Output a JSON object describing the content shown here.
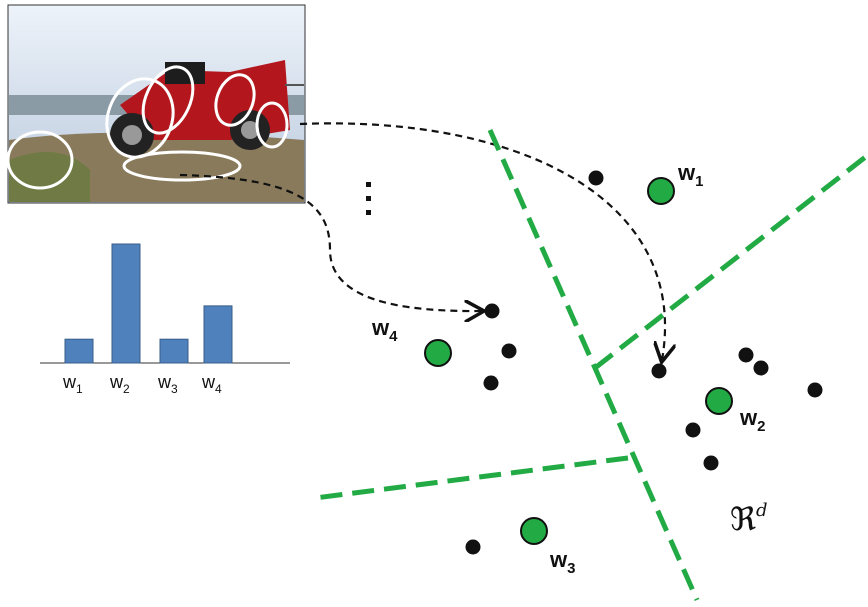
{
  "histogram": {
    "categories": [
      {
        "letter": "w",
        "subscript": "1"
      },
      {
        "letter": "w",
        "subscript": "2"
      },
      {
        "letter": "w",
        "subscript": "3"
      },
      {
        "letter": "w",
        "subscript": "4"
      }
    ],
    "values": [
      1,
      5,
      1,
      2.4
    ]
  },
  "clusters": [
    {
      "letter": "w",
      "subscript": "1"
    },
    {
      "letter": "w",
      "subscript": "2"
    },
    {
      "letter": "w",
      "subscript": "3"
    },
    {
      "letter": "w",
      "subscript": "4"
    }
  ],
  "space": {
    "symbol": "ℜ",
    "superscript": "d"
  }
}
